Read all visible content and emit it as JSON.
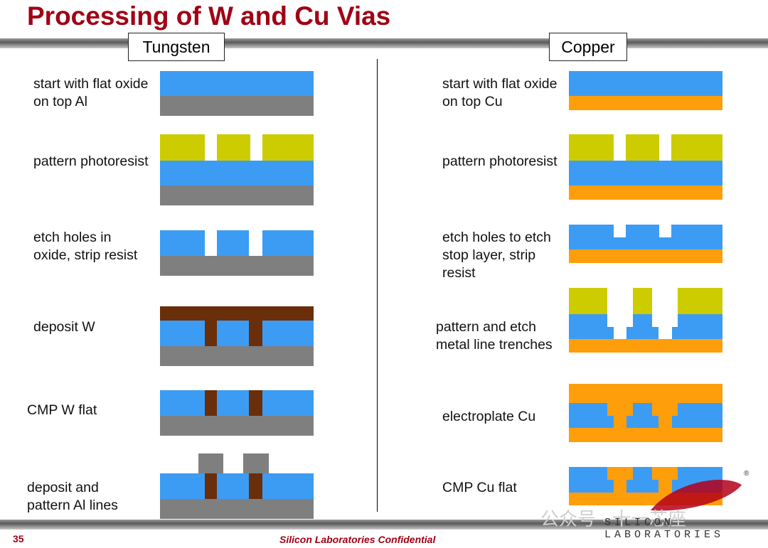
{
  "title": "Processing of W and Cu Vias",
  "tabs": {
    "tungsten": "Tungsten",
    "copper": "Copper"
  },
  "tungsten_steps": [
    "start with flat oxide\non top Al",
    "pattern photoresist",
    "etch holes in\noxide, strip resist",
    "deposit W",
    "CMP W flat",
    "deposit and\npattern Al lines"
  ],
  "copper_steps": [
    "start with flat oxide\non top Cu",
    "pattern photoresist",
    "etch holes to etch\nstop layer, strip\nresist",
    "pattern and etch\nmetal line trenches",
    "electroplate Cu",
    "CMP Cu flat"
  ],
  "footer": {
    "page_number": "35",
    "confidential": "Silicon Laboratories Confidential",
    "logo_text": "SILICON LABORATORIES",
    "registered": "®",
    "watermark": "公众号 · 十一芯座"
  },
  "colors": {
    "oxide": "#3c9cf3",
    "aluminum": "#7f7f7f",
    "copper": "#ff9e0b",
    "photoresist": "#cccc00",
    "tungsten": "#6b2e0a",
    "brand_red": "#a00014"
  }
}
